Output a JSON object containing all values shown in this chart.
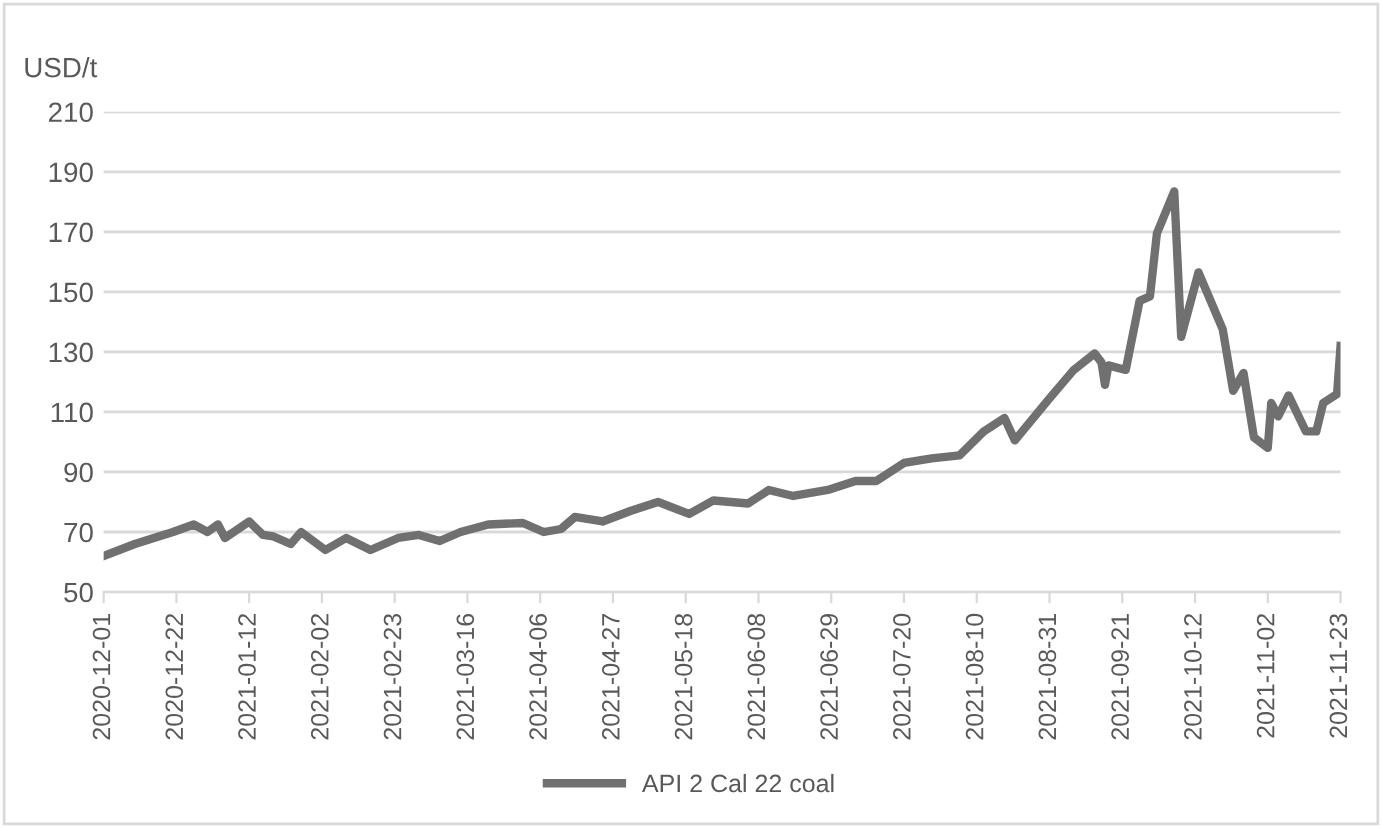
{
  "chart_data": {
    "type": "line",
    "ylabel": "USD/t",
    "x": [
      "2020-12-01",
      "2020-12-10",
      "2020-12-21",
      "2020-12-27",
      "2020-12-31",
      "2021-01-03",
      "2021-01-05",
      "2021-01-12",
      "2021-01-16",
      "2021-01-19",
      "2021-01-24",
      "2021-01-27",
      "2021-02-03",
      "2021-02-09",
      "2021-02-16",
      "2021-02-24",
      "2021-03-02",
      "2021-03-08",
      "2021-03-14",
      "2021-03-22",
      "2021-04-01",
      "2021-04-07",
      "2021-04-12",
      "2021-04-16",
      "2021-04-24",
      "2021-05-02",
      "2021-05-10",
      "2021-05-19",
      "2021-05-26",
      "2021-06-05",
      "2021-06-11",
      "2021-06-18",
      "2021-06-28",
      "2021-07-06",
      "2021-07-12",
      "2021-07-20",
      "2021-07-28",
      "2021-08-05",
      "2021-08-12",
      "2021-08-18",
      "2021-08-21",
      "2021-08-31",
      "2021-09-07",
      "2021-09-13",
      "2021-09-15",
      "2021-09-16",
      "2021-09-17",
      "2021-09-22",
      "2021-09-26",
      "2021-09-29",
      "2021-10-01",
      "2021-10-06",
      "2021-10-08",
      "2021-10-13",
      "2021-10-20",
      "2021-10-23",
      "2021-10-26",
      "2021-10-29",
      "2021-11-02",
      "2021-11-03",
      "2021-11-05",
      "2021-11-08",
      "2021-11-13",
      "2021-11-16",
      "2021-11-18",
      "2021-11-22",
      "2021-11-23"
    ],
    "series": [
      {
        "name": "API 2 Cal 22 coal",
        "color": "#707070",
        "values": [
          62,
          66,
          70,
          72.5,
          70,
          72.5,
          68,
          73.5,
          69,
          68.5,
          66,
          70,
          64,
          68,
          64,
          68,
          69,
          67,
          70,
          72.5,
          73,
          70,
          71,
          75,
          73.5,
          77,
          80,
          76,
          80.5,
          79.5,
          84,
          82,
          84,
          87,
          87,
          93,
          94.5,
          95.5,
          103.5,
          108,
          100.5,
          114.5,
          124,
          129.5,
          126.5,
          119,
          125.5,
          124,
          147,
          148.5,
          169.5,
          183.5,
          135,
          156.5,
          137.5,
          117,
          123,
          101.5,
          98,
          113,
          108.5,
          115.5,
          103.5,
          103.5,
          113,
          116,
          132
        ]
      }
    ],
    "xlim": [
      "2020-12-01",
      "2021-11-23"
    ],
    "xticks": [
      "2020-12-01",
      "2020-12-22",
      "2021-01-12",
      "2021-02-02",
      "2021-02-23",
      "2021-03-16",
      "2021-04-06",
      "2021-04-27",
      "2021-05-18",
      "2021-06-08",
      "2021-06-29",
      "2021-07-20",
      "2021-08-10",
      "2021-08-31",
      "2021-09-21",
      "2021-10-12",
      "2021-11-02",
      "2021-11-23"
    ],
    "ylim": [
      50,
      210
    ],
    "yticks": [
      50,
      70,
      90,
      110,
      130,
      150,
      170,
      190,
      210
    ],
    "grid": "y",
    "legend": "bottom",
    "marker": "none",
    "line_style": "solid"
  }
}
